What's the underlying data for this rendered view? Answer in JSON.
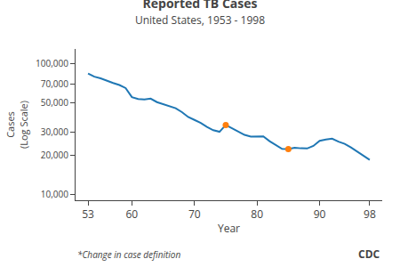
{
  "chart_data": {
    "type": "line",
    "title": "Reported TB Cases",
    "subtitle": "United States, 1953 - 1998",
    "xlabel": "Year",
    "ylabel": "Cases\n(Log Scale)",
    "annotations": [
      "*Change in case definition",
      "CDC"
    ],
    "x": [
      53,
      54,
      55,
      56,
      57,
      58,
      59,
      60,
      61,
      62,
      63,
      64,
      65,
      66,
      67,
      68,
      69,
      70,
      71,
      72,
      73,
      74,
      75,
      76,
      77,
      78,
      79,
      80,
      81,
      82,
      83,
      84,
      85,
      86,
      87,
      88,
      89,
      90,
      91,
      92,
      93,
      94,
      95,
      96,
      97,
      98
    ],
    "series": [
      {
        "type": "line",
        "values": [
          84304,
          79775,
          77368,
          73977,
          71300,
          68837,
          65227,
          55494,
          53726,
          53315,
          54042,
          50874,
          49016,
          47767,
          45647,
          42623,
          39120,
          37137,
          35217,
          32882,
          30998,
          30122,
          33989,
          32105,
          30145,
          28521,
          27669,
          27749,
          27786,
          25520,
          23846,
          22255,
          22201,
          22768,
          22517,
          22436,
          23495,
          25701,
          26283,
          26673,
          25313,
          24361,
          22860,
          21337,
          19851,
          18361
        ]
      },
      {
        "type": "scatter",
        "values": [
          null,
          null,
          null,
          null,
          null,
          null,
          null,
          null,
          null,
          null,
          null,
          null,
          null,
          null,
          null,
          null,
          null,
          null,
          null,
          null,
          null,
          null,
          33989,
          null,
          null,
          null,
          null,
          null,
          null,
          null,
          null,
          null,
          22201,
          null,
          null,
          null,
          null,
          null,
          null,
          null,
          null,
          null,
          null,
          null,
          null,
          null
        ]
      }
    ],
    "log": "y",
    "xlim": [
      51,
      100
    ],
    "xticks": [
      53,
      60,
      70,
      80,
      90,
      98
    ],
    "ylim": [
      9000,
      130000
    ],
    "yticks": [
      {
        "value": 10000,
        "label": "10,000"
      },
      {
        "value": 20000,
        "label": "20,000"
      },
      {
        "value": 30000,
        "label": "30,000"
      },
      {
        "value": 50000,
        "label": "50,000"
      },
      {
        "value": 70000,
        "label": "70,000"
      },
      {
        "value": 100000,
        "label": "100,000"
      }
    ],
    "grid": false
  }
}
